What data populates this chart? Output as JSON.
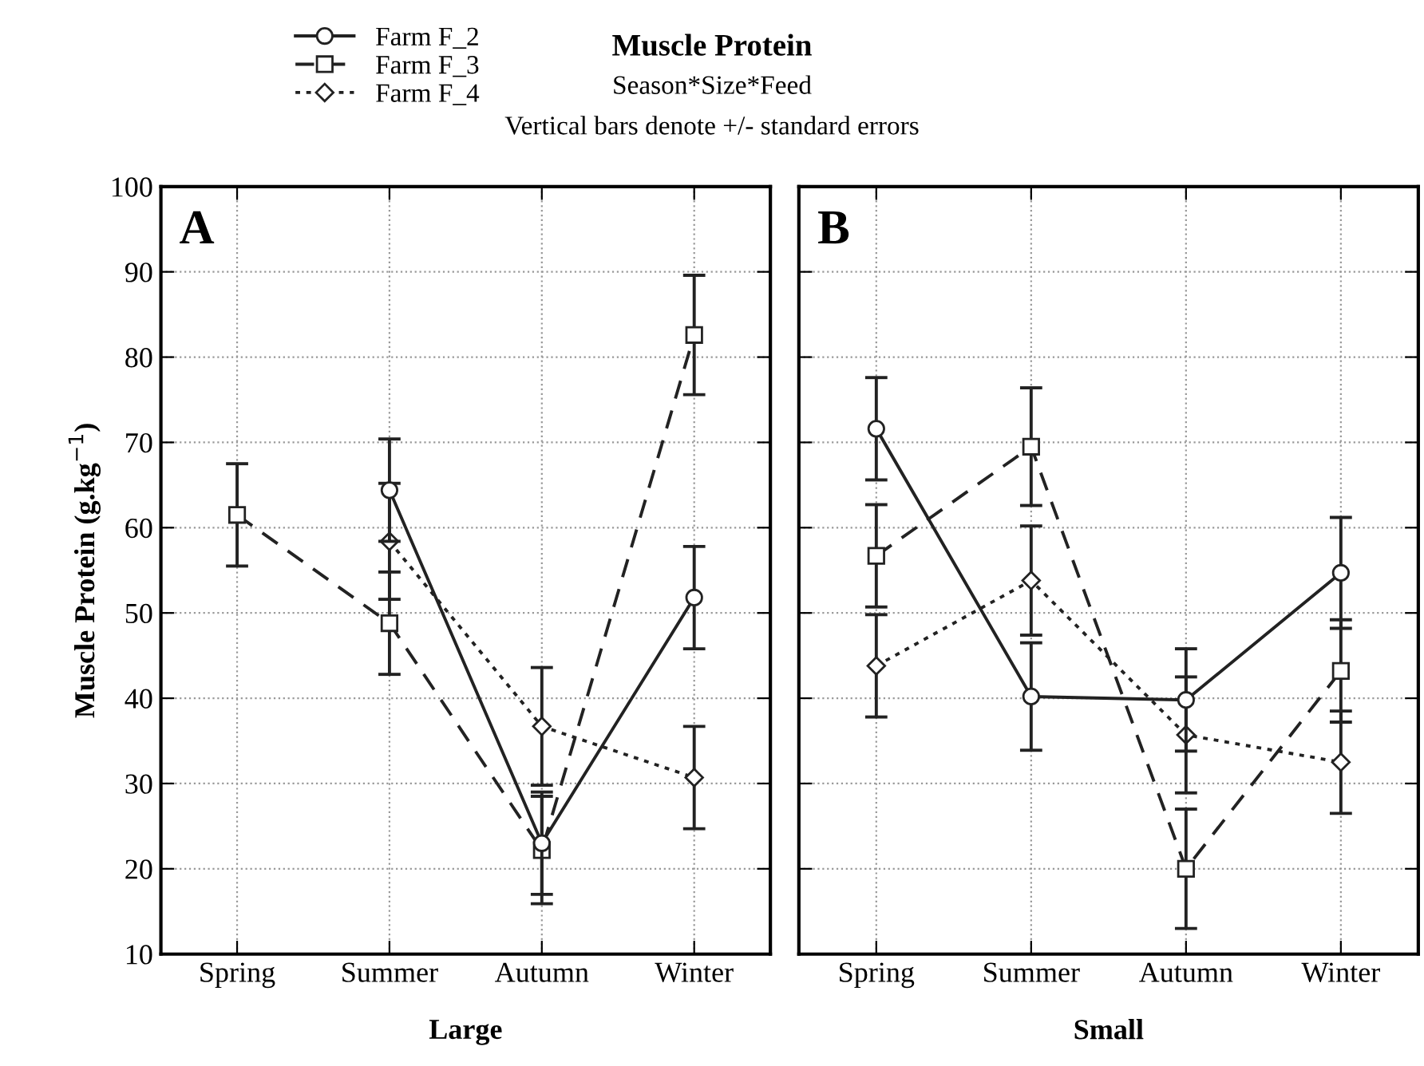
{
  "chart_data": [
    {
      "type": "line",
      "title": "Muscle Protein",
      "subtitle": "Season*Size*Feed",
      "annotations": [
        "Vertical bars denote +/- standard errors",
        "A"
      ],
      "xlabel": "Large",
      "ylabel": "Muscle Protein (g.kg$^{−1}$)",
      "categories": [
        "Spring",
        "Summer",
        "Autumn",
        "Winter"
      ],
      "ylim": [
        10,
        100
      ],
      "yticks": [
        10,
        20,
        30,
        40,
        50,
        60,
        70,
        80,
        90,
        100
      ],
      "grid": true,
      "legend": "top left",
      "series": [
        {
          "name": "Farm F_2",
          "color": "#222222",
          "marker": "circle",
          "line_style": "solid",
          "values": [
            null,
            64.4,
            23.0,
            51.8
          ],
          "errors": [
            null,
            6,
            6,
            6
          ]
        },
        {
          "name": "Farm F_3",
          "color": "#222222",
          "marker": "square",
          "line_style": "dashed",
          "values": [
            61.5,
            48.8,
            22.2,
            82.6
          ],
          "errors": [
            6,
            6,
            6.3,
            7
          ]
        },
        {
          "name": "Farm F_4",
          "color": "#222222",
          "marker": "diamond",
          "line_style": "dotted",
          "values": [
            null,
            58.4,
            36.7,
            30.7
          ],
          "errors": [
            null,
            6.8,
            6.9,
            6
          ]
        }
      ]
    },
    {
      "type": "line",
      "annotations": [
        "B"
      ],
      "xlabel": "Small",
      "categories": [
        "Spring",
        "Summer",
        "Autumn",
        "Winter"
      ],
      "ylim": [
        10,
        100
      ],
      "yticks": [
        10,
        20,
        30,
        40,
        50,
        60,
        70,
        80,
        90,
        100
      ],
      "grid": true,
      "tick_labels": "x",
      "series": [
        {
          "color": "#222222",
          "marker": "circle",
          "line_style": "solid",
          "values": [
            71.6,
            40.2,
            39.8,
            54.7
          ],
          "errors": [
            6,
            6.3,
            6,
            6.5
          ]
        },
        {
          "color": "#222222",
          "marker": "square",
          "line_style": "dashed",
          "values": [
            56.7,
            69.5,
            20.0,
            43.2
          ],
          "errors": [
            6,
            6.9,
            7,
            6
          ]
        },
        {
          "color": "#222222",
          "marker": "diamond",
          "line_style": "dotted",
          "values": [
            43.8,
            53.8,
            35.7,
            32.5
          ],
          "errors": [
            6,
            6.4,
            6.8,
            6
          ]
        }
      ]
    }
  ]
}
